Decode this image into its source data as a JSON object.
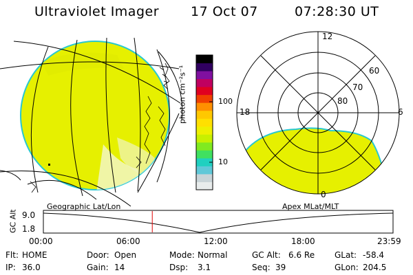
{
  "header": {
    "instrument": "Ultraviolet Imager",
    "date": "17 Oct 07",
    "time": "07:28:30 UT"
  },
  "colorbar": {
    "unit": "photon cm⁻²s⁻¹",
    "ticks": [
      {
        "label": "100",
        "value": 100
      },
      {
        "label": "10",
        "value": 10
      }
    ],
    "colors": [
      "#e8ecec",
      "#c8d4d8",
      "#60c8d8",
      "#20d0c0",
      "#40e060",
      "#80ea20",
      "#c8f000",
      "#eef000",
      "#ffe000",
      "#ffc800",
      "#ff9000",
      "#f04000",
      "#e00020",
      "#c00060",
      "#8010a0",
      "#300060",
      "#000000"
    ]
  },
  "geographic_panel": {
    "label": "Geographic Lat/Lon",
    "fill_color": "#e6f000",
    "edge_color": "#28c8d0"
  },
  "polar_panel": {
    "label": "Apex MLat/MLT",
    "mlt_labels": [
      "12",
      "18",
      "6",
      "0"
    ],
    "lat_labels": [
      "60",
      "70",
      "80"
    ]
  },
  "altitude_plot": {
    "axis_label": "GC Alt",
    "y_ticks": [
      "9.0",
      "1.8"
    ],
    "x_ticks": [
      "00:00",
      "06:00",
      "12:00",
      "18:00",
      "23:59"
    ],
    "current_time_hours": 7.475,
    "marker_color": "#e00000"
  },
  "status": {
    "row1": [
      {
        "key": "Flt:",
        "value": "HOME"
      },
      {
        "key": "Door:",
        "value": "Open"
      },
      {
        "key": "Mode:",
        "value": "Normal"
      },
      {
        "key": "GC Alt:",
        "value": "6.6 Re"
      },
      {
        "key": "GLat:",
        "value": "-58.4"
      }
    ],
    "row2": [
      {
        "key": "IP:",
        "value": "36.0"
      },
      {
        "key": "Gain:",
        "value": "14"
      },
      {
        "key": "Dsp:",
        "value": "3.1"
      },
      {
        "key": "Seq:",
        "value": "39"
      },
      {
        "key": "GLon:",
        "value": "204.5"
      }
    ]
  }
}
